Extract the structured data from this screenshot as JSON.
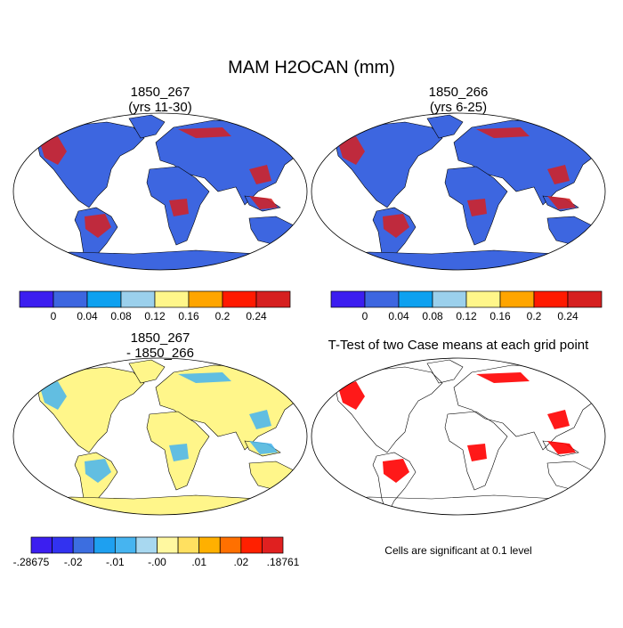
{
  "title": "MAM H2OCAN (mm)",
  "panels": [
    {
      "title": [
        "1850_267",
        "(yrs 11-30)"
      ]
    },
    {
      "title": [
        "1850_266",
        "(yrs 6-25)"
      ]
    },
    {
      "title": [
        "1850_267",
        "- 1850_266"
      ]
    },
    {
      "title": [
        "T-Test of two Case means at each grid point"
      ],
      "note": "Cells are significant at 0.1 level"
    }
  ],
  "colorbars": [
    {
      "colors": [
        "#3c1ef0",
        "#3d66e0",
        "#0ea1f0",
        "#9bd0ec",
        "#fff68a",
        "#ffa500",
        "#ff1a00",
        "#d62020"
      ],
      "labels": [
        "0",
        "0.04",
        "0.08",
        "0.12",
        "0.16",
        "0.2",
        "0.24"
      ]
    },
    {
      "colors": [
        "#3c1ef0",
        "#3d66e0",
        "#0ea1f0",
        "#9bd0ec",
        "#fff68a",
        "#ffa500",
        "#ff1a00",
        "#d62020"
      ],
      "labels": [
        "0",
        "0.04",
        "0.08",
        "0.12",
        "0.16",
        "0.2",
        "0.24"
      ]
    },
    {
      "colors": [
        "#3c1ef0",
        "#3232f0",
        "#3c6ee0",
        "#1ea0f0",
        "#46b4f0",
        "#a8d8f0",
        "#fff8a0",
        "#ffe060",
        "#ffb000",
        "#ff7000",
        "#ff2000",
        "#e02020"
      ],
      "labels": [
        "-.28675",
        "-.02",
        "-.01",
        "-.00",
        ".01",
        ".02",
        ".18761"
      ]
    }
  ]
}
